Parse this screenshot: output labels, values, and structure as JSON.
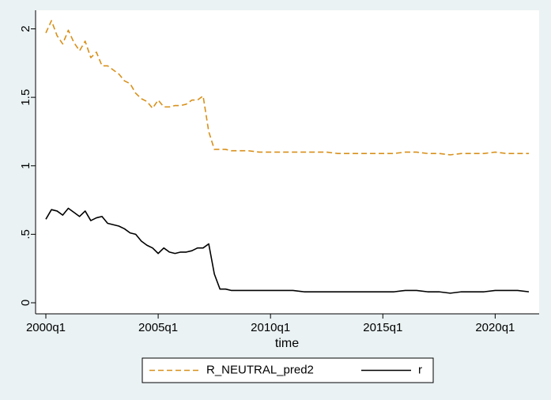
{
  "chart_data": {
    "type": "line",
    "title": "",
    "xlabel": "time",
    "ylabel": "",
    "xlim": [
      2000.0,
      2021.75
    ],
    "ylim": [
      0,
      2.1
    ],
    "grid": false,
    "legend_position": "bottom",
    "x_ticks": [
      {
        "value": 2000.0,
        "label": "2000q1"
      },
      {
        "value": 2005.0,
        "label": "2005q1"
      },
      {
        "value": 2010.0,
        "label": "2010q1"
      },
      {
        "value": 2015.0,
        "label": "2015q1"
      },
      {
        "value": 2020.0,
        "label": "2020q1"
      }
    ],
    "y_ticks": [
      {
        "value": 0,
        "label": "0"
      },
      {
        "value": 0.5,
        "label": ".5"
      },
      {
        "value": 1,
        "label": "1"
      },
      {
        "value": 1.5,
        "label": "1.5"
      },
      {
        "value": 2,
        "label": "2"
      }
    ],
    "x": [
      2000.0,
      2000.25,
      2000.5,
      2000.75,
      2001.0,
      2001.25,
      2001.5,
      2001.75,
      2002.0,
      2002.25,
      2002.5,
      2002.75,
      2003.0,
      2003.25,
      2003.5,
      2003.75,
      2004.0,
      2004.25,
      2004.5,
      2004.75,
      2005.0,
      2005.25,
      2005.5,
      2005.75,
      2006.0,
      2006.25,
      2006.5,
      2006.75,
      2007.0,
      2007.25,
      2007.5,
      2007.75,
      2008.0,
      2008.25,
      2008.5,
      2008.75,
      2009.0,
      2009.5,
      2010.0,
      2010.5,
      2011.0,
      2011.5,
      2012.0,
      2012.5,
      2013.0,
      2013.5,
      2014.0,
      2014.5,
      2015.0,
      2015.5,
      2016.0,
      2016.5,
      2017.0,
      2017.5,
      2018.0,
      2018.5,
      2019.0,
      2019.5,
      2020.0,
      2020.5,
      2021.0,
      2021.5
    ],
    "series": [
      {
        "name": "R_NEUTRAL_pred2",
        "color": "#d8901a",
        "dash": "dashed",
        "values": [
          1.97,
          2.06,
          1.95,
          1.89,
          1.99,
          1.9,
          1.84,
          1.91,
          1.79,
          1.83,
          1.73,
          1.73,
          1.7,
          1.67,
          1.62,
          1.6,
          1.53,
          1.49,
          1.47,
          1.42,
          1.48,
          1.43,
          1.43,
          1.44,
          1.44,
          1.45,
          1.48,
          1.48,
          1.51,
          1.25,
          1.12,
          1.12,
          1.12,
          1.11,
          1.11,
          1.11,
          1.11,
          1.1,
          1.1,
          1.1,
          1.1,
          1.1,
          1.1,
          1.1,
          1.09,
          1.09,
          1.09,
          1.09,
          1.09,
          1.09,
          1.1,
          1.1,
          1.09,
          1.09,
          1.08,
          1.09,
          1.09,
          1.09,
          1.1,
          1.09,
          1.09,
          1.09
        ]
      },
      {
        "name": "r",
        "color": "#000000",
        "dash": "solid",
        "values": [
          0.61,
          0.68,
          0.67,
          0.64,
          0.69,
          0.66,
          0.63,
          0.67,
          0.6,
          0.62,
          0.63,
          0.58,
          0.57,
          0.56,
          0.54,
          0.51,
          0.5,
          0.45,
          0.42,
          0.4,
          0.36,
          0.4,
          0.37,
          0.36,
          0.37,
          0.37,
          0.38,
          0.4,
          0.4,
          0.43,
          0.21,
          0.1,
          0.1,
          0.09,
          0.09,
          0.09,
          0.09,
          0.09,
          0.09,
          0.09,
          0.09,
          0.08,
          0.08,
          0.08,
          0.08,
          0.08,
          0.08,
          0.08,
          0.08,
          0.08,
          0.09,
          0.09,
          0.08,
          0.08,
          0.07,
          0.08,
          0.08,
          0.08,
          0.09,
          0.09,
          0.09,
          0.08
        ]
      }
    ]
  }
}
